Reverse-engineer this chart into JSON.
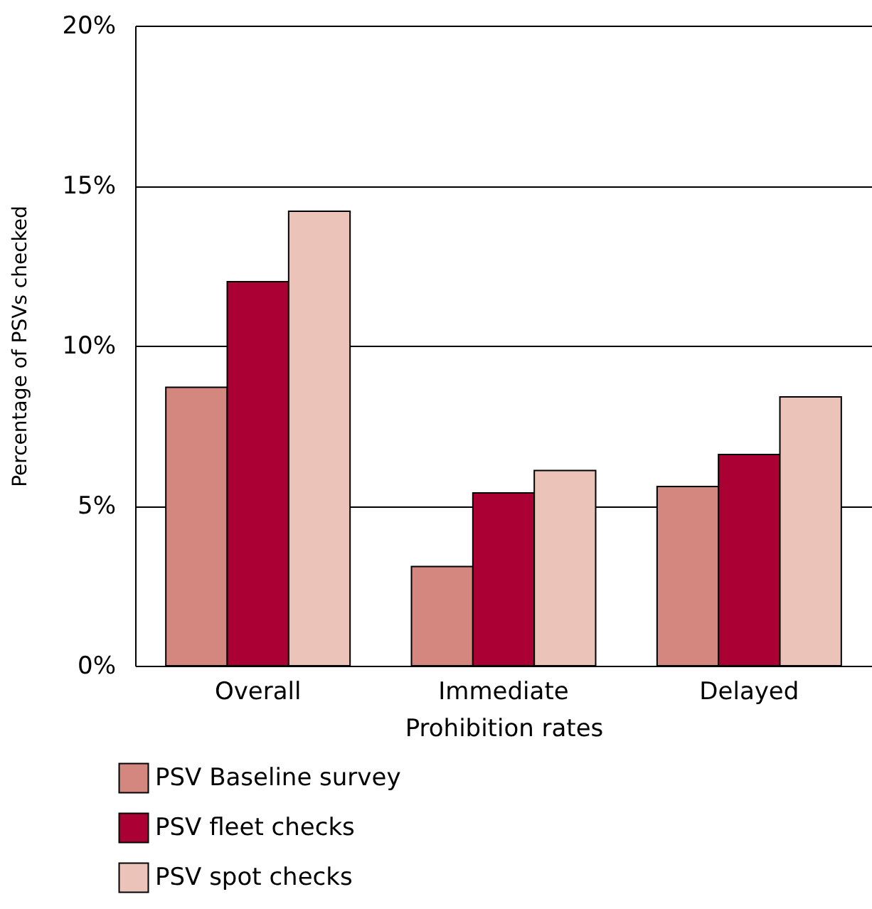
{
  "chart_data": {
    "type": "bar",
    "xlabel": "Prohibition rates",
    "ylabel": "Percentage of PSVs checked",
    "categories": [
      "Overall",
      "Immediate",
      "Delayed"
    ],
    "series": [
      {
        "name": "PSV Baseline survey",
        "color": "#d4877f",
        "values": [
          8.7,
          3.1,
          5.6
        ]
      },
      {
        "name": "PSV fleet checks",
        "color": "#ab0033",
        "values": [
          12.0,
          5.4,
          6.6
        ]
      },
      {
        "name": "PSV spot checks",
        "color": "#ebc3b8",
        "values": [
          14.2,
          6.1,
          8.4
        ]
      }
    ],
    "ylim": [
      0,
      20
    ],
    "yticks": [
      {
        "value": 0,
        "label": "0%"
      },
      {
        "value": 5,
        "label": "5%"
      },
      {
        "value": 10,
        "label": "10%"
      },
      {
        "value": 15,
        "label": "15%"
      },
      {
        "value": 20,
        "label": "20%"
      }
    ],
    "grid": "y",
    "legend": "bottom"
  }
}
